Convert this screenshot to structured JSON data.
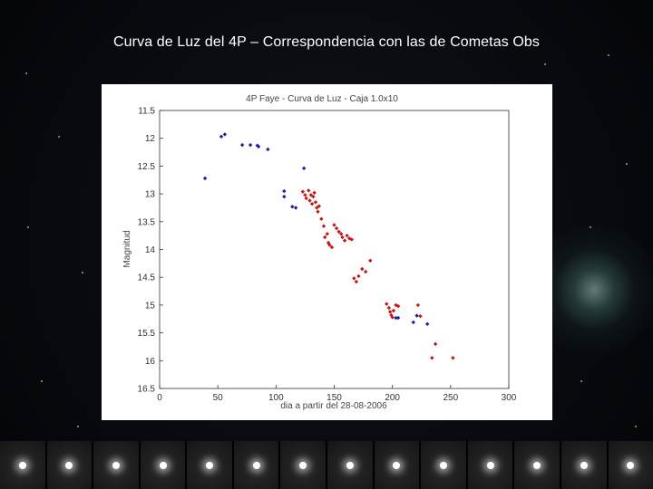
{
  "slide": {
    "title": "Curva de Luz del 4P – Correspondencia con las de Cometas Obs"
  },
  "colors": {
    "background": "#000000",
    "panel": "#ffffff",
    "series_blue": "#1c1ca8",
    "series_red": "#c01818",
    "comet_glow": "#9ed8c8"
  },
  "chart_data": {
    "type": "scatter",
    "title": "4P Faye - Curva de Luz - Caja 1.0x10",
    "xlabel": "dia a partir del 28-08-2006",
    "ylabel": "Magnitud",
    "xlim": [
      0,
      300
    ],
    "ylim": [
      16.5,
      11.5
    ],
    "y_inverted": true,
    "grid": false,
    "xticks": [
      "0",
      "50",
      "100",
      "150",
      "200",
      "250",
      "300"
    ],
    "yticks": [
      "11.5",
      "12",
      "12.5",
      "13",
      "13.5",
      "14",
      "14.5",
      "15",
      "15.5",
      "16",
      "16.5"
    ],
    "series": [
      {
        "color": "#1c1ca8",
        "points": [
          [
            39,
            12.72
          ],
          [
            53,
            11.97
          ],
          [
            56,
            11.93
          ],
          [
            71,
            12.12
          ],
          [
            78,
            12.12
          ],
          [
            84,
            12.13
          ],
          [
            85,
            12.15
          ],
          [
            93,
            12.2
          ],
          [
            107,
            12.95
          ],
          [
            107,
            13.05
          ],
          [
            114,
            13.23
          ],
          [
            117,
            13.25
          ],
          [
            124,
            12.54
          ],
          [
            203,
            15.23
          ],
          [
            205,
            15.23
          ],
          [
            218,
            15.31
          ],
          [
            221,
            15.19
          ],
          [
            230,
            15.34
          ]
        ]
      },
      {
        "color": "#c01818",
        "points": [
          [
            123,
            12.96
          ],
          [
            125,
            13.02
          ],
          [
            126,
            13.08
          ],
          [
            128,
            12.94
          ],
          [
            129,
            13.12
          ],
          [
            130,
            13.02
          ],
          [
            131,
            13.18
          ],
          [
            132,
            13.05
          ],
          [
            133,
            12.98
          ],
          [
            134,
            13.15
          ],
          [
            135,
            13.25
          ],
          [
            136,
            13.32
          ],
          [
            137,
            13.22
          ],
          [
            139,
            13.45
          ],
          [
            141,
            13.58
          ],
          [
            142,
            13.78
          ],
          [
            144,
            13.72
          ],
          [
            145,
            13.88
          ],
          [
            146,
            13.92
          ],
          [
            148,
            13.96
          ],
          [
            150,
            13.56
          ],
          [
            152,
            13.62
          ],
          [
            154,
            13.68
          ],
          [
            156,
            13.72
          ],
          [
            157,
            13.78
          ],
          [
            159,
            13.84
          ],
          [
            161,
            13.75
          ],
          [
            163,
            13.8
          ],
          [
            165,
            13.82
          ],
          [
            167,
            14.52
          ],
          [
            169,
            14.58
          ],
          [
            171,
            14.48
          ],
          [
            174,
            14.35
          ],
          [
            177,
            14.4
          ],
          [
            181,
            14.2
          ],
          [
            195,
            14.98
          ],
          [
            197,
            15.05
          ],
          [
            198,
            15.12
          ],
          [
            199,
            15.18
          ],
          [
            200,
            15.22
          ],
          [
            201,
            15.1
          ],
          [
            203,
            15.0
          ],
          [
            205,
            15.02
          ],
          [
            222,
            15.0
          ],
          [
            224,
            15.2
          ],
          [
            234,
            15.95
          ],
          [
            237,
            15.7
          ],
          [
            252,
            15.95
          ]
        ]
      }
    ]
  }
}
